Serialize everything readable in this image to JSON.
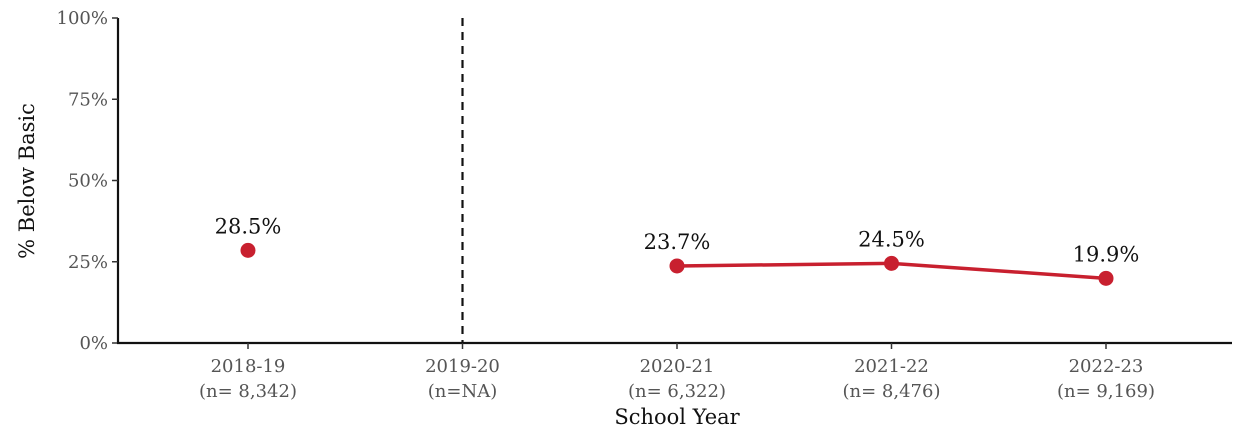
{
  "chart_data": {
    "type": "line",
    "xlabel": "School Year",
    "ylabel": "% Below Basic",
    "ylim": [
      0,
      100
    ],
    "y_ticks": [
      "0%",
      "25%",
      "50%",
      "75%",
      "100%"
    ],
    "categories": [
      {
        "year": "2018-19",
        "n": "(n= 8,342)"
      },
      {
        "year": "2019-20",
        "n": "(n=NA)"
      },
      {
        "year": "2020-21",
        "n": "(n= 6,322)"
      },
      {
        "year": "2021-22",
        "n": "(n= 8,476)"
      },
      {
        "year": "2022-23",
        "n": "(n= 9,169)"
      }
    ],
    "series": [
      {
        "values": [
          28.5,
          null,
          23.7,
          24.5,
          19.9
        ],
        "labels": [
          "28.5%",
          "",
          "23.7%",
          "24.5%",
          "19.9%"
        ],
        "color": "#c8202f"
      }
    ],
    "reference_line": {
      "category": "2019-20",
      "style": "dashed"
    },
    "grid": false
  }
}
